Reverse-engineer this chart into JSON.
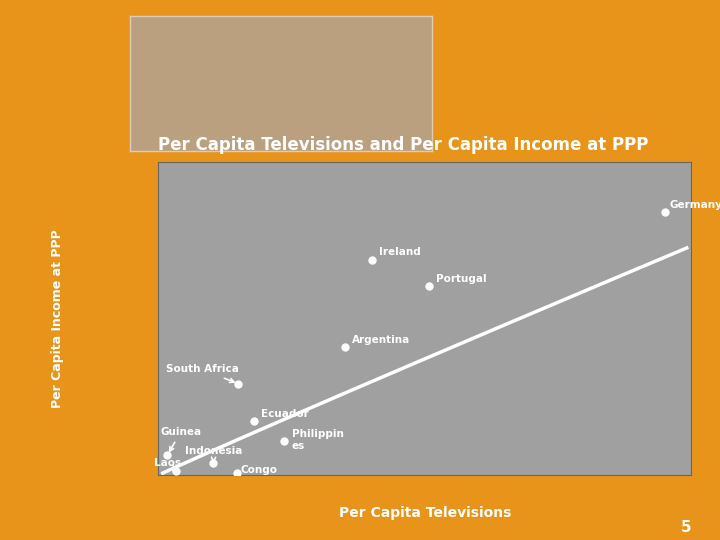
{
  "title": "Per Capita Televisions and Per Capita Income at PPP",
  "xlabel": "Per Capita Televisions",
  "ylabel": "Per Capita Income at PPP",
  "bg_color": "#E8941A",
  "plot_bg_color": "#A0A0A0",
  "title_color": "#FFFFFF",
  "label_color": "#FFFFFF",
  "tick_label_color": "#E8941A",
  "data_points": [
    {
      "country": "Germany",
      "tv": 0.57,
      "income": 21000
    },
    {
      "country": "Ireland",
      "tv": 0.24,
      "income": 17200
    },
    {
      "country": "Portugal",
      "tv": 0.305,
      "income": 15100
    },
    {
      "country": "Argentina",
      "tv": 0.21,
      "income": 10200
    },
    {
      "country": "South Africa",
      "tv": 0.09,
      "income": 7300
    },
    {
      "country": "Ecuador",
      "tv": 0.108,
      "income": 4300
    },
    {
      "country": "Philippines",
      "tv": 0.142,
      "income": 2700
    },
    {
      "country": "Guinea",
      "tv": 0.01,
      "income": 1600
    },
    {
      "country": "Indonesia",
      "tv": 0.062,
      "income": 950
    },
    {
      "country": "Laos",
      "tv": 0.02,
      "income": 300
    },
    {
      "country": "Congo",
      "tv": 0.088,
      "income": 200
    }
  ],
  "curve_color": "#FFFFFF",
  "dot_color": "#FFFFFF",
  "xlim": [
    0.0,
    0.6
  ],
  "ylim": [
    0,
    25000
  ],
  "xticks": [
    0.0,
    0.1,
    0.2,
    0.3,
    0.4,
    0.5,
    0.6
  ],
  "yticks": [
    0,
    5000,
    10000,
    15000,
    20000,
    25000
  ],
  "page_number": "5"
}
